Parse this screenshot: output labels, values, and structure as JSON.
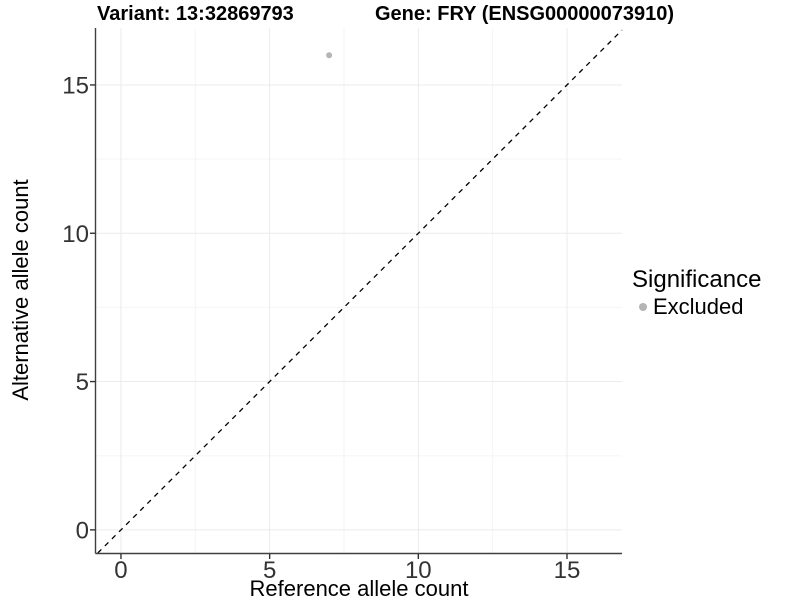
{
  "chart_data": {
    "type": "scatter",
    "title_left": "Variant: 13:32869793",
    "title_right": "Gene: FRY (ENSG00000073910)",
    "xlabel": "Reference allele count",
    "ylabel": "Alternative allele count",
    "x_ticks": [
      0,
      5,
      10,
      15
    ],
    "y_ticks": [
      0,
      5,
      10,
      15
    ],
    "x_minor_ticks": [
      2.5,
      7.5,
      12.5
    ],
    "y_minor_ticks": [
      2.5,
      7.5,
      12.5
    ],
    "xlim": [
      -0.84,
      16.85
    ],
    "ylim": [
      -0.78,
      16.92
    ],
    "grid": "major+minor",
    "points": [
      {
        "x": 7,
        "y": 16,
        "series": "Excluded"
      }
    ],
    "identity_line": {
      "type": "y=x",
      "style": "dashed",
      "color": "#000000"
    },
    "legend": {
      "title": "Significance",
      "position": "right",
      "entries": [
        {
          "label": "Excluded",
          "color": "#b5b5b5"
        }
      ]
    },
    "colors": {
      "point": "#b5b5b5",
      "grid_major": "#ebebeb",
      "grid_minor": "#f5f5f5",
      "axis_line": "#404040",
      "tick_mark": "#333333",
      "tick_label": "#333333",
      "background": "#ffffff"
    }
  }
}
